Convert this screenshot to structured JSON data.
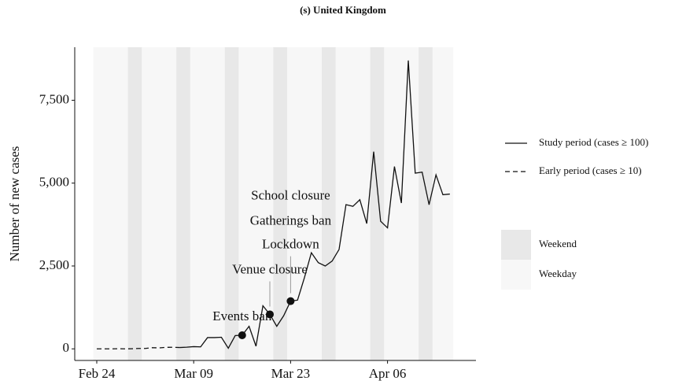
{
  "chart_data": {
    "type": "line",
    "title": "(s) United Kingdom",
    "y_label": "Number of new cases",
    "categories": [
      "Feb 24",
      null,
      null,
      null,
      null,
      null,
      null,
      null,
      null,
      null,
      null,
      null,
      null,
      null,
      "Mar 09",
      null,
      null,
      null,
      null,
      null,
      null,
      null,
      null,
      null,
      null,
      null,
      null,
      null,
      "Mar 23",
      null,
      null,
      null,
      null,
      null,
      null,
      null,
      null,
      null,
      null,
      null,
      null,
      null,
      "Apr 06",
      null,
      null,
      null,
      null,
      null,
      null,
      null,
      null,
      null
    ],
    "series": [
      {
        "name": "Study period (cases ≥ 100)",
        "color": "#111111",
        "dash": false,
        "values": [
          null,
          null,
          null,
          null,
          null,
          null,
          null,
          null,
          null,
          null,
          null,
          null,
          40,
          50,
          67,
          60,
          340,
          340,
          350,
          20,
          400,
          410,
          680,
          80,
          1300,
          1040,
          680,
          1000,
          1440,
          1470,
          2150,
          2900,
          2600,
          2500,
          2650,
          3000,
          4350,
          4300,
          4500,
          3780,
          5950,
          3850,
          3650,
          5500,
          4400,
          8700,
          5300,
          5330,
          4350,
          5250,
          4650,
          4670
        ]
      },
      {
        "name": "Early period (cases ≥ 10)",
        "color": "#111111",
        "dash": true,
        "values": [
          0,
          0,
          0,
          4,
          0,
          3,
          12,
          12,
          36,
          28,
          45,
          48,
          40,
          null,
          null,
          null,
          null,
          null,
          null,
          null,
          null,
          null,
          null,
          null,
          null,
          null,
          null,
          null,
          null,
          null,
          null,
          null,
          null,
          null,
          null,
          null,
          null,
          null,
          null,
          null,
          null,
          null,
          null,
          null,
          null,
          null,
          null,
          null,
          null,
          null,
          null,
          null
        ]
      }
    ],
    "events": [
      {
        "label": "Events ban",
        "day": 21,
        "value": 410
      },
      {
        "label": "Venue closure",
        "day": 25,
        "value": 1040
      },
      {
        "label": "Lockdown",
        "day": 28,
        "value": 1440
      },
      {
        "label": "Gatherings ban"
      },
      {
        "label": "School closure"
      }
    ],
    "shading": [
      {
        "name": "Weekend",
        "color": "#e8e8e8"
      },
      {
        "name": "Weekday",
        "color": "#f7f7f7"
      }
    ],
    "ylim": [
      -350,
      9100
    ],
    "yticks": [
      0,
      {
        "value": 2500,
        "label": "2,500"
      },
      {
        "value": 5000,
        "label": "5,000"
      },
      {
        "value": 7500,
        "label": "7,500"
      }
    ],
    "grid": false
  }
}
